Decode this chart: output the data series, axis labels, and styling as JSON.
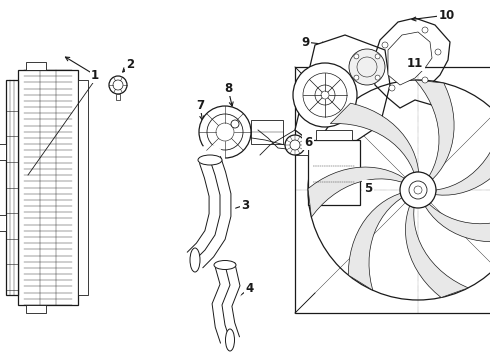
{
  "bg_color": "#ffffff",
  "line_color": "#1a1a1a",
  "figsize": [
    4.9,
    3.6
  ],
  "dpi": 100,
  "label_fontsize": 8.5
}
